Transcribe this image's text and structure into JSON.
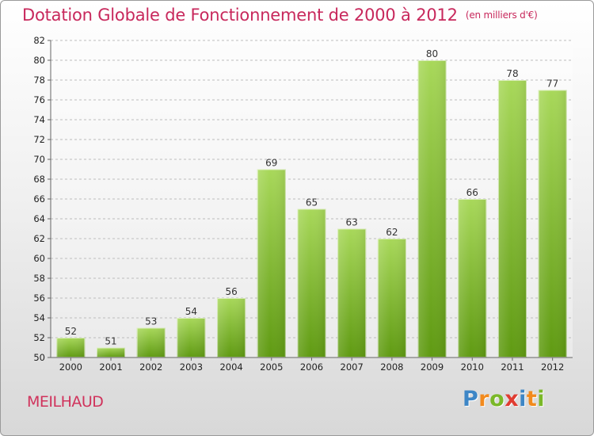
{
  "title": "Dotation Globale de Fonctionnement de 2000 à 2012",
  "unit_note": "(en milliers d'€)",
  "city": "MEILHAUD",
  "logo": {
    "text": "Proxiti",
    "letters": [
      "P",
      "r",
      "o",
      "x",
      "i",
      "t",
      "i"
    ],
    "colors": [
      "#3d86c6",
      "#f28a1d",
      "#7ab828",
      "#e03c31",
      "#3d86c6",
      "#f28a1d",
      "#7ab828"
    ]
  },
  "colors": {
    "title": "#c8285c",
    "bar_light": "#a8d85a",
    "bar_dark": "#5f9a12",
    "grid": "#bdbdbd"
  },
  "chart_data": {
    "type": "bar",
    "title": "Dotation Globale de Fonctionnement de 2000 à 2012",
    "categories": [
      "2000",
      "2001",
      "2002",
      "2003",
      "2004",
      "2005",
      "2006",
      "2007",
      "2008",
      "2009",
      "2010",
      "2011",
      "2012"
    ],
    "values": [
      52,
      51,
      53,
      54,
      56,
      69,
      65,
      63,
      62,
      80,
      66,
      78,
      77
    ],
    "ylim": [
      50,
      82
    ],
    "yticks": [
      50,
      52,
      54,
      56,
      58,
      60,
      62,
      64,
      66,
      68,
      70,
      72,
      74,
      76,
      78,
      80,
      82
    ],
    "grid": true,
    "data_labels": true
  }
}
